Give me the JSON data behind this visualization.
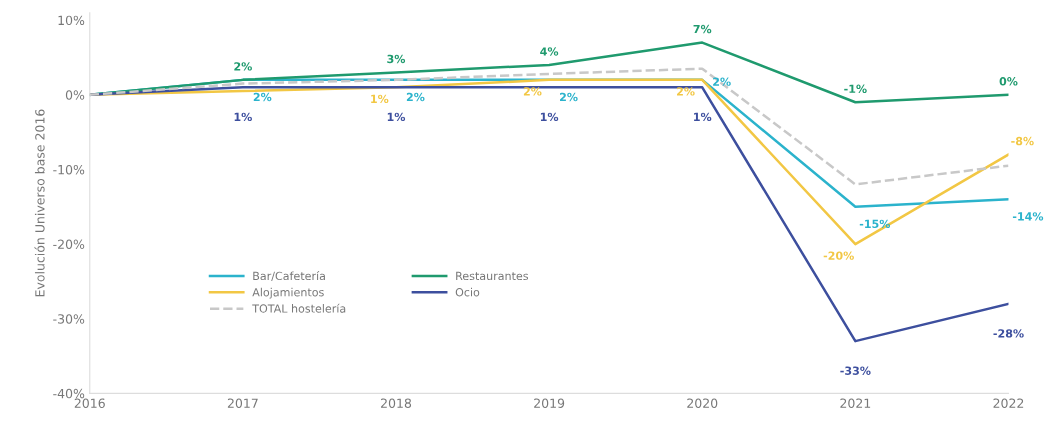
{
  "chart_data": {
    "type": "line",
    "ylabel": "Evolución Universo base 2016",
    "x": [
      2016,
      2017,
      2018,
      2019,
      2020,
      2021,
      2022
    ],
    "xlim": [
      2016,
      2022
    ],
    "xticks": [
      2016,
      2017,
      2018,
      2019,
      2020,
      2021,
      2022
    ],
    "ylim": [
      -40,
      11
    ],
    "yticks": [
      {
        "value": -40,
        "label": "-40%"
      },
      {
        "value": -30,
        "label": "-30%"
      },
      {
        "value": -20,
        "label": "-20%"
      },
      {
        "value": -10,
        "label": "-10%"
      },
      {
        "value": 0,
        "label": "0%"
      },
      {
        "value": 10,
        "label": "10%"
      }
    ],
    "grid": false,
    "legend": "bottom left",
    "marker": "none",
    "series": [
      {
        "name": "Bar/Cafetería",
        "color": "#2bb3cc",
        "values": [
          0,
          2,
          2,
          2,
          2,
          -15,
          -14
        ],
        "value_labels": [
          null,
          "2%",
          "2%",
          "2%",
          "2%",
          "-15%",
          "-14%"
        ]
      },
      {
        "name": "Restaurantes",
        "color": "#1f9a6e",
        "values": [
          0,
          2,
          3,
          4,
          7,
          -1,
          0
        ],
        "value_labels": [
          null,
          "2%",
          "3%",
          "4%",
          "7%",
          "-1%",
          "0%"
        ]
      },
      {
        "name": "Alojamientos",
        "color": "#f2c744",
        "values": [
          0,
          0.5,
          1,
          2,
          2,
          -20,
          -8
        ],
        "value_labels": [
          null,
          null,
          "1%",
          "2%",
          "2%",
          "-20%",
          "-8%"
        ]
      },
      {
        "name": "Ocio",
        "color": "#3d4f9e",
        "values": [
          0,
          1,
          1,
          1,
          1,
          -33,
          -28
        ],
        "value_labels": [
          null,
          "1%",
          "1%",
          "1%",
          "1%",
          "-33%",
          "-28%"
        ]
      },
      {
        "name": "TOTAL hostelería",
        "color": "#c8c8c8",
        "line_style": "dashed",
        "values": [
          0,
          1.5,
          2,
          2.8,
          3.5,
          -12,
          -9.5
        ]
      }
    ]
  }
}
